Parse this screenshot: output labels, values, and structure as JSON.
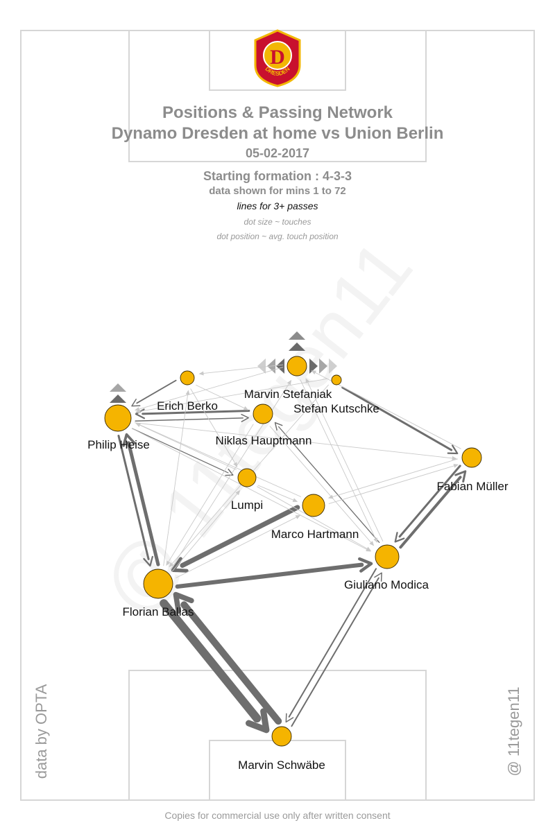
{
  "header": {
    "title_line1": "Positions & Passing Network",
    "title_line2": "Dynamo Dresden at home vs Union Berlin",
    "date": "05-02-2017",
    "formation": "Starting formation : 4-3-3",
    "data_range": "data shown for mins 1 to 72",
    "lines_note": "lines for 3+ passes",
    "dot_size_note": "dot size ~ touches",
    "dot_position_note": "dot position ~ avg. touch position"
  },
  "crest": {
    "text": "DRESDEN",
    "letter": "D"
  },
  "side_text": {
    "left": "data by OPTA",
    "right": "@ 11tegen11"
  },
  "footer": "Copies for commercial use only after written consent",
  "colors": {
    "node_fill": "#f5b400",
    "node_stroke": "#3a2a00",
    "edge_color": "#6e6e6e",
    "pitch_line": "#d6d6d6",
    "crest_red": "#c8102e",
    "crest_gold": "#f2b705"
  },
  "players": [
    {
      "id": "stefaniak",
      "name": "Marvin Stefaniak"
    },
    {
      "id": "kutschke",
      "name": "Stefan Kutschke"
    },
    {
      "id": "berko",
      "name": "Erich Berko"
    },
    {
      "id": "hauptmann",
      "name": "Niklas Hauptmann"
    },
    {
      "id": "heise",
      "name": "Philip Heise"
    },
    {
      "id": "mueller",
      "name": "Fabian Müller"
    },
    {
      "id": "lumpi",
      "name": "Lumpi"
    },
    {
      "id": "hartmann",
      "name": "Marco Hartmann"
    },
    {
      "id": "modica",
      "name": "Giuliano Modica"
    },
    {
      "id": "ballas",
      "name": "Florian Ballas"
    },
    {
      "id": "schwaebe",
      "name": "Marvin Schwäbe"
    }
  ]
}
